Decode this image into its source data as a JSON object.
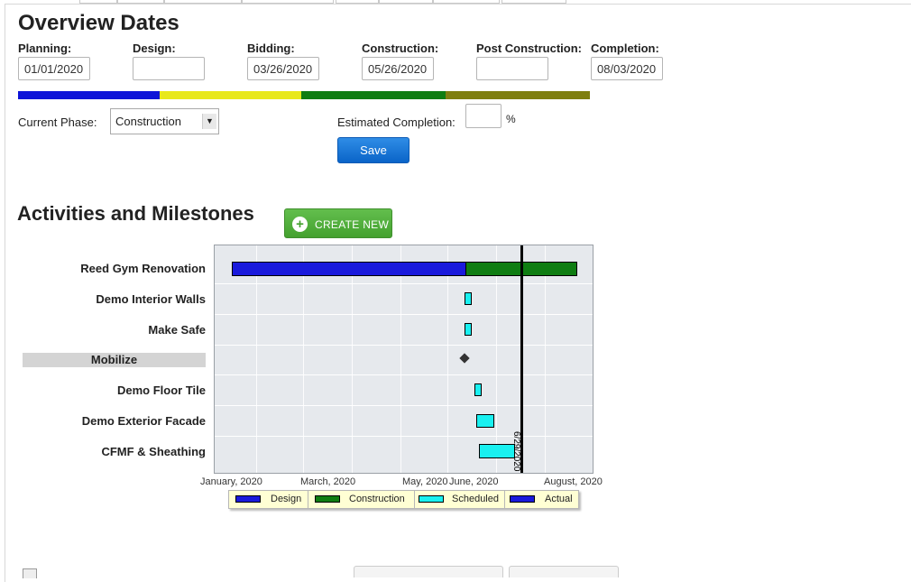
{
  "overview": {
    "title": "Overview Dates",
    "fields": [
      {
        "label": "Planning:",
        "value": "01/01/2020"
      },
      {
        "label": "Design:",
        "value": ""
      },
      {
        "label": "Bidding:",
        "value": "03/26/2020"
      },
      {
        "label": "Construction:",
        "value": "05/26/2020"
      },
      {
        "label": "Post Construction:",
        "value": ""
      },
      {
        "label": "Completion:",
        "value": "08/03/2020"
      }
    ],
    "phase_colors": [
      "#0e14d8",
      "#e8e81a",
      "#0f7d12",
      "#7f7f10"
    ],
    "current_phase_label": "Current Phase:",
    "current_phase_value": "Construction",
    "estimated_completion_label": "Estimated Completion:",
    "estimated_completion_value": "",
    "percent_symbol": "%",
    "save_label": "Save"
  },
  "activities": {
    "title": "Activities and Milestones",
    "create_label": "CREATE NEW",
    "tasks": [
      {
        "name": "Reed Gym Renovation"
      },
      {
        "name": "Demo Interior Walls"
      },
      {
        "name": "Make Safe"
      },
      {
        "name": "Mobilize",
        "highlighted": true
      },
      {
        "name": "Demo Floor Tile"
      },
      {
        "name": "Demo Exterior Facade"
      },
      {
        "name": "CFMF & Sheathing"
      }
    ]
  },
  "chart_data": {
    "type": "gantt",
    "x_ticks": [
      "January, 2020",
      "March, 2020",
      "May, 2020",
      "June, 2020",
      "August, 2020"
    ],
    "today_label": "6/29/2020",
    "legend": [
      {
        "name": "Design",
        "color": "#1a1adc"
      },
      {
        "name": "Construction",
        "color": "#0f7d12"
      },
      {
        "name": "Scheduled",
        "color": "#19f0f0"
      },
      {
        "name": "Actual",
        "color": "#1a1adc"
      }
    ]
  }
}
